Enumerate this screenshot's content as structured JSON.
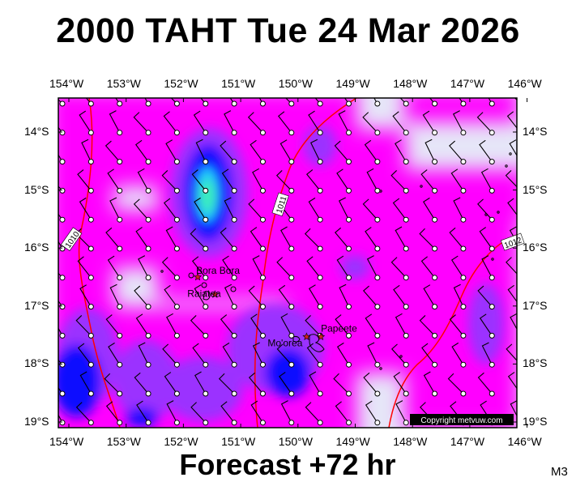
{
  "title": "2000 TAHT Tue 24 Mar 2026",
  "footer": "Forecast +72 hr",
  "code": "M3",
  "copyright": "Copyright metvuw.com",
  "lon_labels": [
    "154°W",
    "153°W",
    "152°W",
    "151°W",
    "150°W",
    "149°W",
    "148°W",
    "147°W",
    "146°W"
  ],
  "lat_labels": [
    "14°S",
    "15°S",
    "16°S",
    "17°S",
    "18°S",
    "19°S"
  ],
  "places": [
    {
      "name": "Bora Bora",
      "lon": -151.75,
      "lat": -16.5
    },
    {
      "name": "Raiatea",
      "lon": -151.45,
      "lat": -16.8
    },
    {
      "name": "Papeete",
      "lon": -149.6,
      "lat": -17.53
    },
    {
      "name": "Mo'orea",
      "lon": -149.85,
      "lat": -17.53
    }
  ],
  "isobars": [
    {
      "label": "1010",
      "label_lon": -153.95,
      "label_lat": -15.85
    },
    {
      "label": "1011",
      "label_lon": -150.3,
      "label_lat": -15.25
    },
    {
      "label": "1012",
      "label_lon": -146.25,
      "label_lat": -15.9
    }
  ],
  "colors": {
    "calm": "#e6e6f8",
    "magenta": "#ff00ff",
    "violet": "#9b30ff",
    "blue": "#1010ff",
    "cyan": "#1ec8ff",
    "teal": "#3cf0b4",
    "isobar": "#ff0000"
  }
}
